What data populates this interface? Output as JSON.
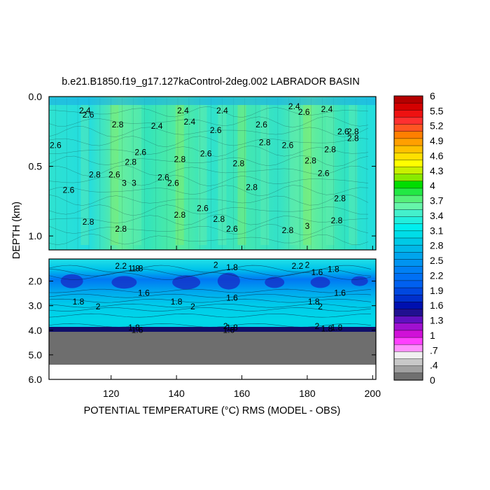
{
  "chart_data": {
    "type": "heatmap",
    "title": "b.e21.B1850.f19_g17.127kaControl-2deg.002 LABRADOR BASIN",
    "xlabel": "POTENTIAL TEMPERATURE (°C) RMS (MODEL - OBS)",
    "ylabel": "DEPTH (km)",
    "xlim": [
      101,
      201
    ],
    "x_ticks": [
      "120",
      "140",
      "160",
      "180",
      "200"
    ],
    "upper_panel": {
      "ylim": [
        0.0,
        1.1
      ],
      "y_ticks": [
        "0.0",
        "0.5",
        "1.0"
      ]
    },
    "lower_panel": {
      "ylim": [
        1.1,
        6.0
      ],
      "y_ticks": [
        "2.0",
        "3.0",
        "4.0",
        "5.0",
        "6.0"
      ]
    },
    "no_data_below_km": 4.1,
    "bottom_of_data_km": 5.4,
    "colorbar_labels": [
      "6",
      "5.5",
      "5.2",
      "4.9",
      "4.6",
      "4.3",
      "4",
      "3.7",
      "3.4",
      "3.1",
      "2.8",
      "2.5",
      "2.2",
      "1.9",
      "1.6",
      "1.3",
      "1",
      ".7",
      ".4",
      "0"
    ],
    "colorbar_colors": [
      "#b40000",
      "#d40000",
      "#ee1111",
      "#ff3030",
      "#ff5522",
      "#ff7f00",
      "#ff9f00",
      "#ffc000",
      "#ffdf00",
      "#ffff00",
      "#c8f000",
      "#88ea00",
      "#00dd00",
      "#22e844",
      "#55f07a",
      "#66f5aa",
      "#44f0cc",
      "#22eedd",
      "#00eeee",
      "#00dde8",
      "#00c9e6",
      "#00b8e8",
      "#00a5ec",
      "#0094f0",
      "#0080f4",
      "#0070f4",
      "#0060f0",
      "#0048e0",
      "#0030cc",
      "#0010b0",
      "#201090",
      "#6010c0",
      "#a010d0",
      "#d010d8",
      "#ff40ff",
      "#ff90ff",
      "#f0f0f0",
      "#c8c8c8",
      "#a0a0a0",
      "#707070"
    ],
    "contour_labels_upper": [
      {
        "x": 112,
        "d": 0.12,
        "t": "2.4"
      },
      {
        "x": 113,
        "d": 0.15,
        "t": "2.6"
      },
      {
        "x": 103,
        "d": 0.37,
        "t": "2.6"
      },
      {
        "x": 107,
        "d": 0.69,
        "t": "2.6"
      },
      {
        "x": 115,
        "d": 0.58,
        "t": "2.8"
      },
      {
        "x": 113,
        "d": 0.92,
        "t": "2.8"
      },
      {
        "x": 122,
        "d": 0.22,
        "t": "2.8"
      },
      {
        "x": 121,
        "d": 0.58,
        "t": "2.6"
      },
      {
        "x": 124,
        "d": 0.64,
        "t": "3"
      },
      {
        "x": 127,
        "d": 0.64,
        "t": "3"
      },
      {
        "x": 126,
        "d": 0.49,
        "t": "2.8"
      },
      {
        "x": 129,
        "d": 0.42,
        "t": "2.6"
      },
      {
        "x": 123,
        "d": 0.97,
        "t": "2.8"
      },
      {
        "x": 134,
        "d": 0.23,
        "t": "2.4"
      },
      {
        "x": 136,
        "d": 0.6,
        "t": "2.6"
      },
      {
        "x": 139,
        "d": 0.64,
        "t": "2.6"
      },
      {
        "x": 141,
        "d": 0.47,
        "t": "2.8"
      },
      {
        "x": 141,
        "d": 0.87,
        "t": "2.8"
      },
      {
        "x": 142,
        "d": 0.12,
        "t": "2.4"
      },
      {
        "x": 144,
        "d": 0.2,
        "t": "2.4"
      },
      {
        "x": 148,
        "d": 0.82,
        "t": "2.6"
      },
      {
        "x": 149,
        "d": 0.43,
        "t": "2.6"
      },
      {
        "x": 152,
        "d": 0.26,
        "t": "2.6"
      },
      {
        "x": 154,
        "d": 0.12,
        "t": "2.4"
      },
      {
        "x": 153,
        "d": 0.9,
        "t": "2.8"
      },
      {
        "x": 157,
        "d": 0.97,
        "t": "2.6"
      },
      {
        "x": 159,
        "d": 0.5,
        "t": "2.8"
      },
      {
        "x": 163,
        "d": 0.67,
        "t": "2.8"
      },
      {
        "x": 166,
        "d": 0.22,
        "t": "2.6"
      },
      {
        "x": 167,
        "d": 0.35,
        "t": "2.8"
      },
      {
        "x": 174,
        "d": 0.37,
        "t": "2.6"
      },
      {
        "x": 174,
        "d": 0.98,
        "t": "2.8"
      },
      {
        "x": 176,
        "d": 0.09,
        "t": "2.4"
      },
      {
        "x": 179,
        "d": 0.13,
        "t": "2.6"
      },
      {
        "x": 180,
        "d": 0.95,
        "t": "3"
      },
      {
        "x": 181,
        "d": 0.48,
        "t": "2.8"
      },
      {
        "x": 185,
        "d": 0.57,
        "t": "2.6"
      },
      {
        "x": 187,
        "d": 0.4,
        "t": "2.8"
      },
      {
        "x": 186,
        "d": 0.11,
        "t": "2.4"
      },
      {
        "x": 191,
        "d": 0.27,
        "t": "2.6"
      },
      {
        "x": 194,
        "d": 0.32,
        "t": "2.8"
      },
      {
        "x": 194,
        "d": 0.27,
        "t": "2.8"
      },
      {
        "x": 190,
        "d": 0.75,
        "t": "2.8"
      },
      {
        "x": 189,
        "d": 0.91,
        "t": "2.8"
      }
    ],
    "contour_labels_lower": [
      {
        "x": 123,
        "d": 1.5,
        "t": "2.2"
      },
      {
        "x": 127,
        "d": 1.6,
        "t": "1.8"
      },
      {
        "x": 128,
        "d": 1.6,
        "t": "1.8"
      },
      {
        "x": 152,
        "d": 1.45,
        "t": "2"
      },
      {
        "x": 157,
        "d": 1.55,
        "t": "1.8"
      },
      {
        "x": 177,
        "d": 1.5,
        "t": "2.2"
      },
      {
        "x": 180,
        "d": 1.45,
        "t": "2"
      },
      {
        "x": 183,
        "d": 1.75,
        "t": "1.6"
      },
      {
        "x": 188,
        "d": 1.62,
        "t": "1.8"
      },
      {
        "x": 110,
        "d": 2.95,
        "t": "1.8"
      },
      {
        "x": 116,
        "d": 3.15,
        "t": "2"
      },
      {
        "x": 130,
        "d": 2.6,
        "t": "1.6"
      },
      {
        "x": 140,
        "d": 2.95,
        "t": "1.8"
      },
      {
        "x": 145,
        "d": 3.15,
        "t": "2"
      },
      {
        "x": 157,
        "d": 2.8,
        "t": "1.6"
      },
      {
        "x": 182,
        "d": 2.95,
        "t": "1.8"
      },
      {
        "x": 184,
        "d": 3.15,
        "t": "2"
      },
      {
        "x": 190,
        "d": 2.6,
        "t": "1.6"
      },
      {
        "x": 127,
        "d": 4.0,
        "t": "1.8"
      },
      {
        "x": 128,
        "d": 4.1,
        "t": "1.6"
      },
      {
        "x": 155,
        "d": 3.95,
        "t": "2"
      },
      {
        "x": 157,
        "d": 4.0,
        "t": "1.8"
      },
      {
        "x": 156,
        "d": 4.1,
        "t": "1.6"
      },
      {
        "x": 183,
        "d": 3.95,
        "t": "2"
      },
      {
        "x": 186,
        "d": 4.05,
        "t": "1.8"
      },
      {
        "x": 189,
        "d": 4.0,
        "t": "1.8"
      }
    ]
  }
}
